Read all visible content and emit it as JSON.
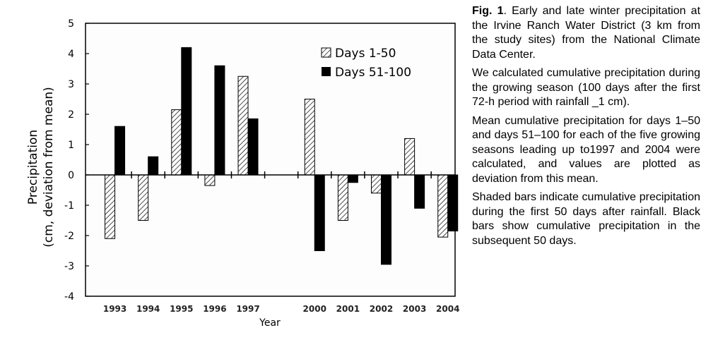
{
  "chart_data": {
    "type": "bar",
    "categories": [
      "1993",
      "1994",
      "1995",
      "1996",
      "1997",
      "2000",
      "2001",
      "2002",
      "2003",
      "2004"
    ],
    "series": [
      {
        "name": "Days 1-50",
        "pattern": "hatched",
        "values": [
          -2.1,
          -1.5,
          2.15,
          -0.35,
          3.25,
          2.5,
          -1.5,
          -0.6,
          1.2,
          -2.05
        ]
      },
      {
        "name": "Days 51-100",
        "pattern": "solid",
        "values": [
          1.6,
          0.6,
          4.2,
          3.6,
          1.85,
          -2.5,
          -0.25,
          -2.95,
          -1.1,
          -1.85
        ]
      }
    ],
    "title": "",
    "xlabel": "Year",
    "ylabel": "Precipitation (cm, deviation from mean)",
    "ylabel_lines": [
      "Precipitation",
      "(cm, deviation from mean)"
    ],
    "ylim": [
      -4,
      5
    ],
    "yticks": [
      "5",
      "4",
      "3",
      "2",
      "1",
      "0",
      "-1",
      "-2",
      "-3",
      "-4"
    ],
    "grid": false,
    "legend": "top-right",
    "colors": {
      "solid": "#000000",
      "hatch": "#000000"
    }
  },
  "caption": {
    "fig_label": "Fig. 1",
    "fig_text": ". Early and late winter precipitation at the Irvine Ranch Water District (3 km from the study sites) from the National Climate Data Center.",
    "paragraphs": [
      "We calculated cumulative precipitation during the growing season (100 days after the first 72-h period with rainfall _1 cm).",
      "Mean cumulative precipitation for days 1–50 and days 51–100 for each of the five growing seasons leading up to1997 and 2004 were calculated, and values are plotted as deviation from this mean.",
      "Shaded bars indicate cumulative precipitation during the first 50 days after rainfall. Black bars show cumulative precipitation in the subsequent 50 days."
    ]
  }
}
